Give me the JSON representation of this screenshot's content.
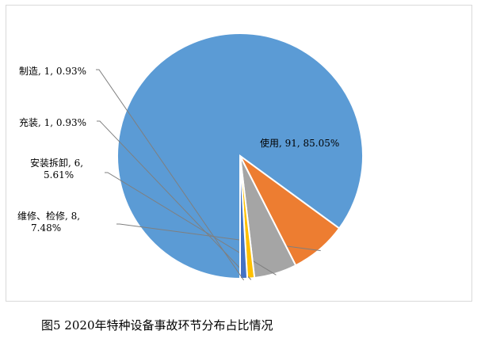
{
  "chart_data": {
    "type": "pie",
    "slices": [
      {
        "category": "使用",
        "value": 91,
        "percent": "85.05%",
        "color": "#5B9BD5",
        "label_lines": [
          "使用, 91, 85.05%"
        ]
      },
      {
        "category": "维修、检修",
        "value": 8,
        "percent": "7.48%",
        "color": "#ED7D31",
        "label_lines": [
          "维修、检修, 8,",
          "7.48%"
        ]
      },
      {
        "category": "安装拆卸",
        "value": 6,
        "percent": "5.61%",
        "color": "#A5A5A5",
        "label_lines": [
          "安装拆卸, 6,",
          "5.61%"
        ]
      },
      {
        "category": "充装",
        "value": 1,
        "percent": "0.93%",
        "color": "#FFC000",
        "label_lines": [
          "充装, 1, 0.93%"
        ]
      },
      {
        "category": "制造",
        "value": 1,
        "percent": "0.93%",
        "color": "#4472C4",
        "label_lines": [
          "制造, 1, 0.93%"
        ]
      }
    ]
  },
  "caption": "图5 2020年特种设备事故环节分布占比情况"
}
